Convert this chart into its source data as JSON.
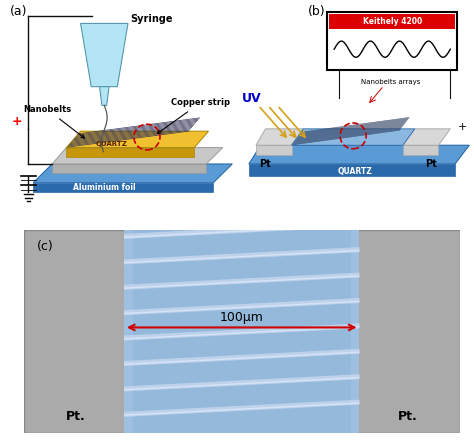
{
  "bg_color": "#ffffff",
  "panel_a_label": "(a)",
  "panel_b_label": "(b)",
  "panel_c_label": "(c)",
  "syringe_label": "Syringe",
  "copper_strip_label": "Copper strip",
  "nanobelts_label": "Nanobelts",
  "aluminium_label": "Aluminium foil",
  "quartz_label_a": "QUARTZ",
  "quartz_label_b": "QUARTZ",
  "keithely_label": "Keithely 4200",
  "nanobelts_arrays_label": "Nanobelts arrays",
  "uv_label": "UV",
  "pt_left_b": "Pt",
  "pt_right_b": "Pt",
  "pt_left_c": "Pt.",
  "pt_right_c": "Pt.",
  "scale_label": "100μm",
  "syringe_color": "#b3e5f5",
  "syringe_dark": "#7ac8e0",
  "gold_color": "#f0c030",
  "gold_dark": "#c8960a",
  "gold_shadow": "#a07010",
  "blue_base": "#5b9bd5",
  "blue_dark": "#2a6aaa",
  "blue_light": "#8ab8e0",
  "blue_mid": "#7aadd0",
  "gray_quartz": "#c8c8c8",
  "gray_dark": "#999999",
  "keithely_red": "#dd0000",
  "circle_color": "#cc0000",
  "uv_arrow_color": "#d4a017",
  "uv_text_color": "#0000cc",
  "gray_bg_c": "#aaaaaa",
  "blue_nanobelt": "#8ab4d8",
  "white_line": "#c8d8f0",
  "red_arrow": "#cc0000",
  "pt_gray": "#d8d8d8",
  "wire_color": "#111111"
}
